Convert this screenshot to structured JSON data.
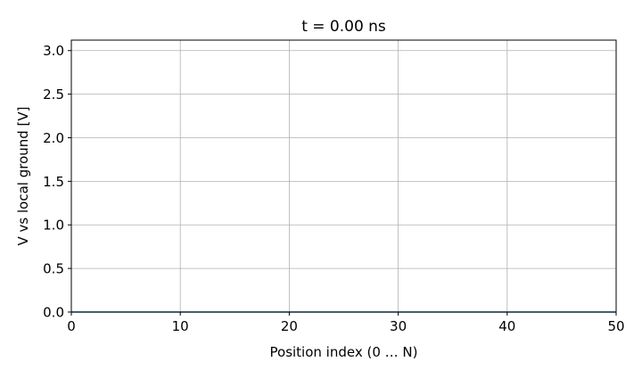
{
  "chart_data": {
    "type": "line",
    "title": "t = 0.00 ns",
    "xlabel": "Position index (0 … N)",
    "ylabel": "V vs local ground [V]",
    "xlim": [
      0,
      50
    ],
    "ylim": [
      0,
      3.12
    ],
    "xticks": [
      0,
      10,
      20,
      30,
      40,
      50
    ],
    "xtick_labels": [
      "0",
      "10",
      "20",
      "30",
      "40",
      "50"
    ],
    "yticks": [
      0,
      0.5,
      1.0,
      1.5,
      2.0,
      2.5,
      3.0
    ],
    "ytick_labels": [
      "0.0",
      "0.5",
      "1.0",
      "1.5",
      "2.0",
      "2.5",
      "3.0"
    ],
    "grid": true,
    "series": [
      {
        "color": "#1f77b4",
        "x": [
          0,
          50
        ],
        "y": [
          0,
          0
        ]
      }
    ]
  }
}
